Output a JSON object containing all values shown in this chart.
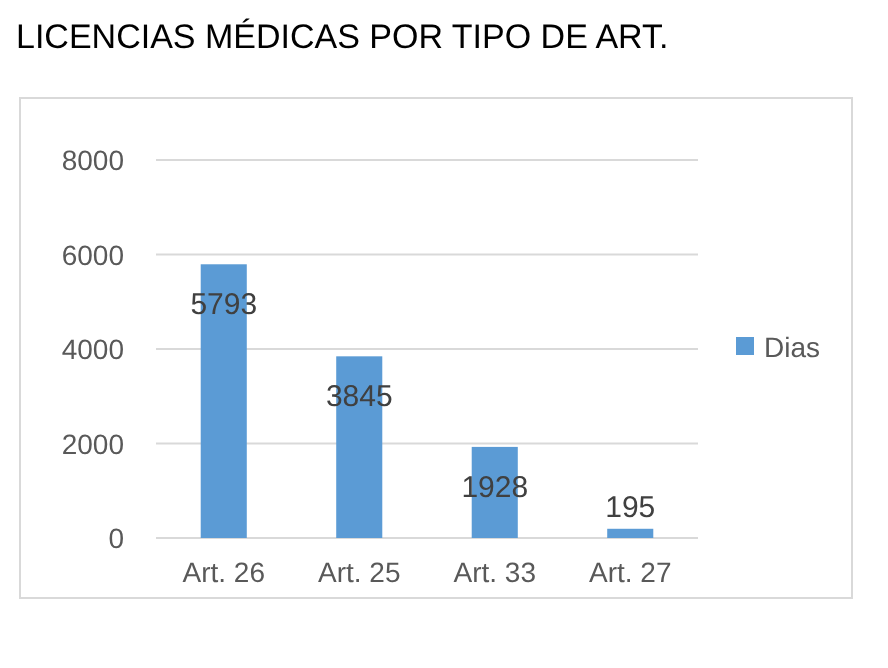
{
  "chart_data": {
    "type": "bar",
    "title": "LICENCIAS MÉDICAS POR TIPO DE ART.",
    "categories": [
      "Art. 26",
      "Art. 25",
      "Art. 33",
      "Art. 27"
    ],
    "series": [
      {
        "name": "Dias",
        "color": "#5b9bd5",
        "values": [
          5793,
          3845,
          1928,
          195
        ]
      }
    ],
    "ylim": [
      0,
      8000
    ],
    "yticks": [
      0,
      2000,
      4000,
      6000,
      8000
    ],
    "grid": true,
    "legend": "right",
    "data_labels": true
  }
}
